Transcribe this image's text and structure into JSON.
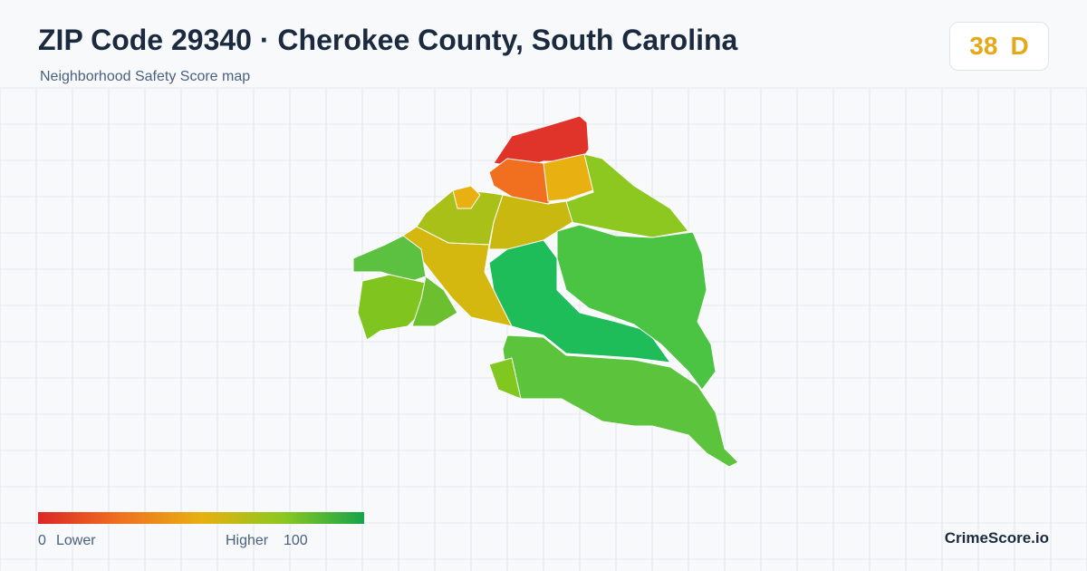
{
  "header": {
    "title": "ZIP Code 29340 · Cherokee County, South Carolina",
    "subtitle": "Neighborhood Safety Score map"
  },
  "badge": {
    "score": 38,
    "grade": "D"
  },
  "legend": {
    "min": 0,
    "min_label": "Lower",
    "max_label": "Higher",
    "max": 100
  },
  "brand": "CrimeScore.io"
}
